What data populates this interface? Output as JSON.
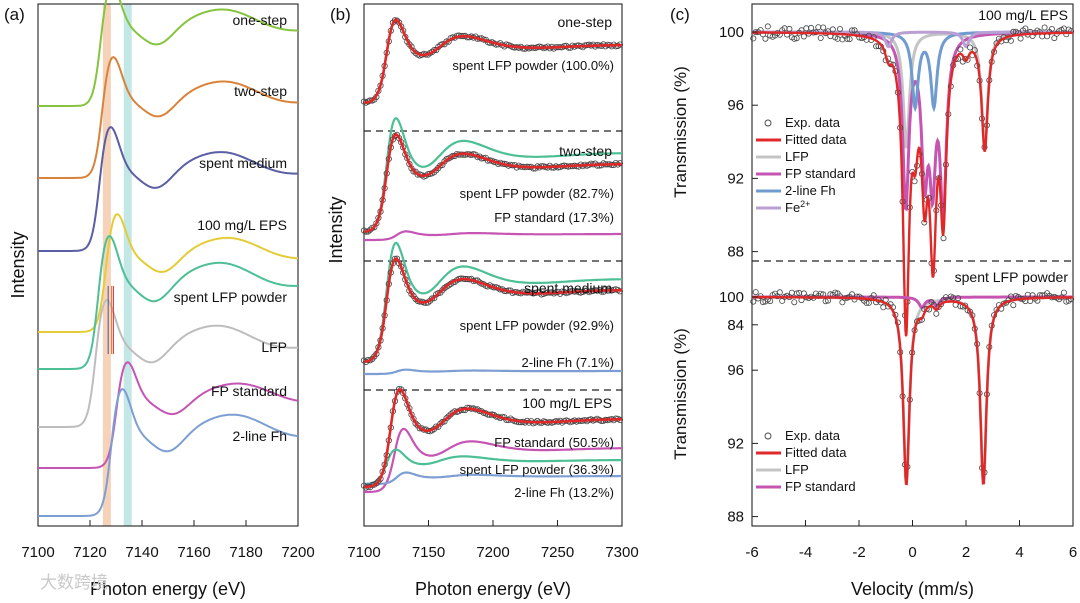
{
  "chart_data": [
    {
      "panel": "(a)",
      "type": "line",
      "xlabel": "Photon energy (eV)",
      "ylabel": "Intensity",
      "xlim": [
        7100,
        7200
      ],
      "xticks": [
        7100,
        7120,
        7140,
        7160,
        7180,
        7200
      ],
      "highlight_bands": [
        {
          "x": 7126.5,
          "color": "#f6d3b8"
        },
        {
          "x": 7134.5,
          "color": "#c3e7e5"
        }
      ],
      "series": [
        {
          "name": "one-step",
          "color": "#86c440",
          "edge": 7124,
          "baseline": 106,
          "amp": 80
        },
        {
          "name": "two-step",
          "color": "#d9833a",
          "edge": 7124.5,
          "baseline": 178,
          "amp": 80
        },
        {
          "name": "spent medium",
          "color": "#5a5ea4",
          "edge": 7123.5,
          "baseline": 251,
          "amp": 82
        },
        {
          "name": "100 mg/L EPS",
          "color": "#e4cc38",
          "edge": 7126,
          "baseline": 332,
          "amp": 78
        },
        {
          "name": "spent LFP powder",
          "color": "#4cbf95",
          "edge": 7123,
          "baseline": 369,
          "amp": 88
        },
        {
          "name": "LFP",
          "color": "#bdbdbd",
          "edge": 7122,
          "baseline": 427,
          "amp": 84
        },
        {
          "name": "FP standard",
          "color": "#c654b3",
          "edge": 7130,
          "baseline": 468,
          "amp": 70
        },
        {
          "name": "2-line Fh",
          "color": "#7d9ed3",
          "edge": 7128,
          "baseline": 516,
          "amp": 84
        }
      ]
    },
    {
      "panel": "(b)",
      "type": "line",
      "xlabel": "Photon energy (eV)",
      "ylabel": "Intensity",
      "xlim": [
        7100,
        7300
      ],
      "xticks": [
        7100,
        7150,
        7200,
        7250,
        7300
      ],
      "subpanels": [
        {
          "title": "one-step",
          "components": [
            {
              "label": "spent LFP powder (100.0%)",
              "color": "#4cbf95",
              "weight": 100.0
            }
          ]
        },
        {
          "title": "two-step",
          "components": [
            {
              "label": "spent LFP powder (82.7%)",
              "color": "#4cbf95",
              "weight": 82.7
            },
            {
              "label": "FP standard (17.3%)",
              "color": "#c654b3",
              "weight": 17.3
            }
          ]
        },
        {
          "title": "spent medium",
          "components": [
            {
              "label": "spent LFP powder (92.9%)",
              "color": "#4cbf95",
              "weight": 92.9
            },
            {
              "label": "2-line Fh (7.1%)",
              "color": "#7d9ed3",
              "weight": 7.1
            }
          ]
        },
        {
          "title": "100 mg/L EPS",
          "components": [
            {
              "label": "FP standard (50.5%)",
              "color": "#c654b3",
              "weight": 50.5
            },
            {
              "label": "spent LFP powder (36.3%)",
              "color": "#4cbf95",
              "weight": 36.3
            },
            {
              "label": "2-line Fh (13.2%)",
              "color": "#7d9ed3",
              "weight": 13.2
            }
          ]
        }
      ]
    },
    {
      "panel": "(c)",
      "type": "line",
      "xlabel": "Velocity (mm/s)",
      "ylabel": "Transmission (%)",
      "xlim": [
        -6,
        6
      ],
      "xticks": [
        -6,
        -4,
        -2,
        0,
        2,
        4,
        6
      ],
      "subpanels": [
        {
          "title": "100 mg/L EPS",
          "yticks": [
            100,
            96,
            92,
            88,
            84
          ],
          "legend": [
            "Exp. data",
            "Fitted data",
            "LFP",
            "FP standard",
            "2-line Fh",
            "Fe2+"
          ],
          "components": [
            {
              "name": "LFP",
              "color": "#c4c4c4",
              "lines": [
                [
                  -0.23,
                  6.3
                ],
                [
                  2.7,
                  6.3
                ]
              ]
            },
            {
              "name": "FP standard",
              "color": "#c654b3",
              "lines": [
                [
                  -0.25,
                  9.2
                ],
                [
                  0.45,
                  7.0
                ],
                [
                  0.75,
                  7.0
                ],
                [
                  1.15,
                  9.2
                ]
              ]
            },
            {
              "name": "2-line Fh",
              "color": "#6f9bd0",
              "lines": [
                [
                  0.1,
                  4.0
                ],
                [
                  0.8,
                  4.0
                ]
              ]
            },
            {
              "name": "Fe2+",
              "color": "#b9a0d2",
              "lines": [
                [
                  -0.9,
                  0.8
                ],
                [
                  2.0,
                  0.8
                ]
              ]
            }
          ]
        },
        {
          "title": "spent LFP powder",
          "yticks": [
            100,
            96,
            92,
            88
          ],
          "legend": [
            "Exp. data",
            "Fitted data",
            "LFP",
            "FP standard"
          ],
          "components": [
            {
              "name": "LFP",
              "color": "#c4c4c4",
              "lines": [
                [
                  -0.23,
                  10.2
                ],
                [
                  2.65,
                  10.2
                ]
              ]
            },
            {
              "name": "FP standard",
              "color": "#c654b3",
              "lines": [
                [
                  0.35,
                  0.55
                ],
                [
                  0.9,
                  0.45
                ]
              ]
            }
          ]
        }
      ]
    }
  ],
  "labels": {
    "fe2_base": "Fe",
    "fe2_sup": "2+"
  },
  "watermark": "大数跨境"
}
